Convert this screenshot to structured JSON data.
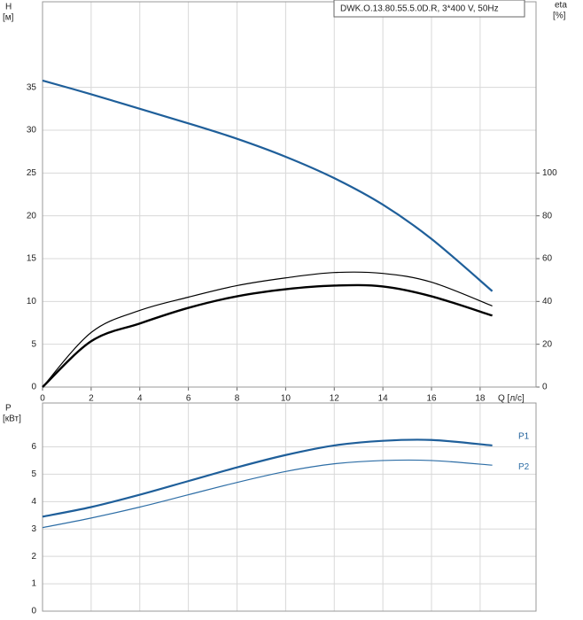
{
  "chart_data": [
    {
      "type": "line",
      "annotation": "DWK.O.13.80.55.5.0D.R, 3*400 V, 50Hz",
      "ylabel": "H",
      "yunit": "[м]",
      "y2label": "eta",
      "y2unit": "[%]",
      "xlabel": "Q [л/с]",
      "x": [
        0,
        2,
        4,
        6,
        8,
        10,
        12,
        14,
        16,
        18.5
      ],
      "xlim": [
        0,
        20.3
      ],
      "xticks": [
        0,
        2,
        4,
        6,
        8,
        10,
        12,
        14,
        16,
        18
      ],
      "ylim": [
        0,
        45
      ],
      "yticks": [
        0,
        5,
        10,
        15,
        20,
        25,
        30,
        35
      ],
      "y2lim": [
        0,
        180
      ],
      "y2ticks": [
        0,
        20,
        40,
        60,
        80,
        100
      ],
      "grid": true,
      "series": [
        {
          "color": "#1f5f9a",
          "width": 2.2,
          "values": [
            35.8,
            34.2,
            32.5,
            30.8,
            29,
            26.9,
            24.4,
            21.3,
            17.3,
            11.2
          ]
        },
        {
          "color": "#000000",
          "width": 1.2,
          "axis": "y2",
          "values": [
            0,
            25.5,
            35.8,
            42,
            47.4,
            51,
            53.5,
            53.1,
            49,
            37.9
          ]
        },
        {
          "color": "#000000",
          "width": 2.4,
          "axis": "y2",
          "values": [
            0,
            21.4,
            29.7,
            37,
            42.4,
            45.7,
            47.4,
            47,
            42.4,
            33.4
          ]
        }
      ]
    },
    {
      "type": "line",
      "ylabel": "P",
      "yunit": "[кВт]",
      "x": [
        0,
        2,
        4,
        6,
        8,
        10,
        12,
        14,
        16,
        18.5
      ],
      "xlim": [
        0,
        20.3
      ],
      "xticks": [
        0,
        2,
        4,
        6,
        8,
        10,
        12,
        14,
        16,
        18
      ],
      "ylim": [
        0,
        7.6
      ],
      "yticks": [
        0,
        1,
        2,
        3,
        4,
        5,
        6
      ],
      "grid": true,
      "series": [
        {
          "name": "P1",
          "color": "#1f5f9a",
          "width": 2.2,
          "values": [
            3.45,
            3.8,
            4.25,
            4.75,
            5.25,
            5.7,
            6.05,
            6.22,
            6.25,
            6.05
          ]
        },
        {
          "name": "P2",
          "color": "#2e6ea6",
          "width": 1.2,
          "values": [
            3.05,
            3.4,
            3.8,
            4.25,
            4.7,
            5.1,
            5.38,
            5.5,
            5.5,
            5.33
          ]
        }
      ]
    }
  ]
}
